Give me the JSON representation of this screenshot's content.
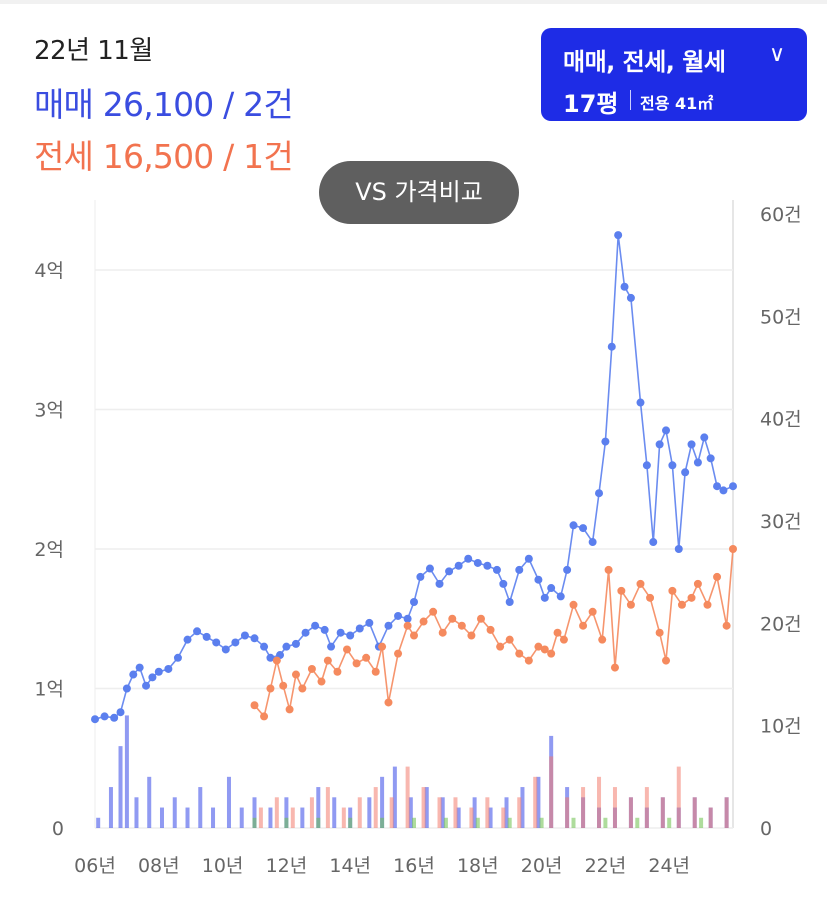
{
  "header": {
    "date": "22년 11월",
    "sale_text": "매매 26,100 / 2건",
    "jeonse_text": "전세 16,500 / 1건"
  },
  "filter": {
    "types": "매매, 전세, 월세",
    "size": "17평",
    "area": "전용 41㎡"
  },
  "vs_button": "VS 가격비교",
  "colors": {
    "sale": "#5b7fee",
    "jeonse": "#f58a5e",
    "sale_bar": "#3447e8",
    "jeonse_bar": "#f27c6d",
    "rent_bar": "#6cc04a",
    "accent": "#1e2ce6"
  },
  "chart_data": {
    "type": "line",
    "x_ticks": [
      "06년",
      "08년",
      "10년",
      "12년",
      "14년",
      "16년",
      "18년",
      "20년",
      "22년",
      "24년"
    ],
    "x_range": [
      2006,
      2026
    ],
    "y_left_ticks": [
      "0",
      "1억",
      "2억",
      "3억",
      "4억"
    ],
    "y_left_range": [
      0,
      4.2
    ],
    "y_right_ticks": [
      "0",
      "10건",
      "20건",
      "30건",
      "40건",
      "50건",
      "60건"
    ],
    "y_right_range": [
      0,
      60
    ],
    "series": [
      {
        "name": "매매",
        "points": [
          [
            2006.0,
            0.78
          ],
          [
            2006.3,
            0.8
          ],
          [
            2006.6,
            0.79
          ],
          [
            2006.8,
            0.83
          ],
          [
            2007.0,
            1.0
          ],
          [
            2007.2,
            1.1
          ],
          [
            2007.4,
            1.15
          ],
          [
            2007.6,
            1.02
          ],
          [
            2007.8,
            1.08
          ],
          [
            2008.0,
            1.12
          ],
          [
            2008.3,
            1.14
          ],
          [
            2008.6,
            1.22
          ],
          [
            2008.9,
            1.35
          ],
          [
            2009.2,
            1.41
          ],
          [
            2009.5,
            1.37
          ],
          [
            2009.8,
            1.33
          ],
          [
            2010.1,
            1.28
          ],
          [
            2010.4,
            1.33
          ],
          [
            2010.7,
            1.38
          ],
          [
            2011.0,
            1.36
          ],
          [
            2011.3,
            1.3
          ],
          [
            2011.5,
            1.22
          ],
          [
            2011.8,
            1.24
          ],
          [
            2012.0,
            1.3
          ],
          [
            2012.3,
            1.32
          ],
          [
            2012.6,
            1.4
          ],
          [
            2012.9,
            1.45
          ],
          [
            2013.2,
            1.42
          ],
          [
            2013.4,
            1.3
          ],
          [
            2013.7,
            1.4
          ],
          [
            2014.0,
            1.38
          ],
          [
            2014.3,
            1.43
          ],
          [
            2014.6,
            1.47
          ],
          [
            2014.9,
            1.3
          ],
          [
            2015.2,
            1.45
          ],
          [
            2015.5,
            1.52
          ],
          [
            2015.8,
            1.5
          ],
          [
            2016.0,
            1.62
          ],
          [
            2016.2,
            1.8
          ],
          [
            2016.5,
            1.86
          ],
          [
            2016.8,
            1.75
          ],
          [
            2017.1,
            1.84
          ],
          [
            2017.4,
            1.88
          ],
          [
            2017.7,
            1.93
          ],
          [
            2018.0,
            1.9
          ],
          [
            2018.3,
            1.88
          ],
          [
            2018.6,
            1.85
          ],
          [
            2018.8,
            1.75
          ],
          [
            2019.0,
            1.62
          ],
          [
            2019.3,
            1.85
          ],
          [
            2019.6,
            1.93
          ],
          [
            2019.9,
            1.78
          ],
          [
            2020.1,
            1.65
          ],
          [
            2020.3,
            1.72
          ],
          [
            2020.6,
            1.66
          ],
          [
            2020.8,
            1.85
          ],
          [
            2021.0,
            2.17
          ],
          [
            2021.3,
            2.15
          ],
          [
            2021.6,
            2.05
          ],
          [
            2021.8,
            2.4
          ],
          [
            2022.0,
            2.77
          ],
          [
            2022.2,
            3.45
          ],
          [
            2022.4,
            4.25
          ],
          [
            2022.6,
            3.88
          ],
          [
            2022.8,
            3.8
          ],
          [
            2023.1,
            3.05
          ],
          [
            2023.3,
            2.6
          ],
          [
            2023.5,
            2.05
          ],
          [
            2023.7,
            2.75
          ],
          [
            2023.9,
            2.85
          ],
          [
            2024.1,
            2.6
          ],
          [
            2024.3,
            2.0
          ],
          [
            2024.5,
            2.55
          ],
          [
            2024.7,
            2.75
          ],
          [
            2024.9,
            2.62
          ],
          [
            2025.1,
            2.8
          ],
          [
            2025.3,
            2.65
          ],
          [
            2025.5,
            2.45
          ],
          [
            2025.7,
            2.42
          ],
          [
            2026.0,
            2.45
          ]
        ]
      },
      {
        "name": "전세",
        "points": [
          [
            2011.0,
            0.88
          ],
          [
            2011.3,
            0.8
          ],
          [
            2011.5,
            1.0
          ],
          [
            2011.7,
            1.2
          ],
          [
            2011.9,
            1.02
          ],
          [
            2012.1,
            0.85
          ],
          [
            2012.3,
            1.1
          ],
          [
            2012.5,
            1.0
          ],
          [
            2012.8,
            1.14
          ],
          [
            2013.1,
            1.05
          ],
          [
            2013.3,
            1.2
          ],
          [
            2013.6,
            1.12
          ],
          [
            2013.9,
            1.28
          ],
          [
            2014.2,
            1.18
          ],
          [
            2014.5,
            1.22
          ],
          [
            2014.8,
            1.12
          ],
          [
            2015.0,
            1.3
          ],
          [
            2015.2,
            0.9
          ],
          [
            2015.5,
            1.25
          ],
          [
            2015.8,
            1.45
          ],
          [
            2016.0,
            1.38
          ],
          [
            2016.3,
            1.48
          ],
          [
            2016.6,
            1.55
          ],
          [
            2016.9,
            1.4
          ],
          [
            2017.2,
            1.5
          ],
          [
            2017.5,
            1.45
          ],
          [
            2017.8,
            1.38
          ],
          [
            2018.1,
            1.5
          ],
          [
            2018.4,
            1.42
          ],
          [
            2018.7,
            1.3
          ],
          [
            2019.0,
            1.35
          ],
          [
            2019.3,
            1.25
          ],
          [
            2019.6,
            1.2
          ],
          [
            2019.9,
            1.3
          ],
          [
            2020.1,
            1.28
          ],
          [
            2020.3,
            1.25
          ],
          [
            2020.5,
            1.4
          ],
          [
            2020.7,
            1.35
          ],
          [
            2021.0,
            1.6
          ],
          [
            2021.3,
            1.45
          ],
          [
            2021.6,
            1.55
          ],
          [
            2021.9,
            1.35
          ],
          [
            2022.1,
            1.85
          ],
          [
            2022.3,
            1.15
          ],
          [
            2022.5,
            1.7
          ],
          [
            2022.8,
            1.6
          ],
          [
            2023.1,
            1.75
          ],
          [
            2023.4,
            1.65
          ],
          [
            2023.7,
            1.4
          ],
          [
            2023.9,
            1.2
          ],
          [
            2024.1,
            1.7
          ],
          [
            2024.4,
            1.6
          ],
          [
            2024.7,
            1.65
          ],
          [
            2024.9,
            1.75
          ],
          [
            2025.2,
            1.6
          ],
          [
            2025.5,
            1.8
          ],
          [
            2025.8,
            1.45
          ],
          [
            2026.0,
            2.0
          ]
        ]
      }
    ],
    "volume_bars": [
      {
        "name": "매매",
        "values": [
          [
            2006.1,
            1
          ],
          [
            2006.5,
            4
          ],
          [
            2006.8,
            8
          ],
          [
            2007.0,
            11
          ],
          [
            2007.3,
            3
          ],
          [
            2007.7,
            5
          ],
          [
            2008.1,
            2
          ],
          [
            2008.5,
            3
          ],
          [
            2008.9,
            2
          ],
          [
            2009.3,
            4
          ],
          [
            2009.7,
            2
          ],
          [
            2010.2,
            5
          ],
          [
            2010.6,
            2
          ],
          [
            2011.0,
            3
          ],
          [
            2011.5,
            2
          ],
          [
            2012.0,
            3
          ],
          [
            2012.5,
            2
          ],
          [
            2013.0,
            4
          ],
          [
            2013.5,
            3
          ],
          [
            2014.0,
            2
          ],
          [
            2014.6,
            3
          ],
          [
            2015.0,
            5
          ],
          [
            2015.4,
            6
          ],
          [
            2015.9,
            3
          ],
          [
            2016.4,
            4
          ],
          [
            2016.9,
            3
          ],
          [
            2017.4,
            2
          ],
          [
            2017.9,
            3
          ],
          [
            2018.4,
            2
          ],
          [
            2018.9,
            3
          ],
          [
            2019.4,
            4
          ],
          [
            2019.9,
            5
          ],
          [
            2020.3,
            9
          ],
          [
            2020.8,
            4
          ],
          [
            2021.3,
            3
          ],
          [
            2021.8,
            2
          ],
          [
            2022.3,
            2
          ],
          [
            2022.8,
            3
          ],
          [
            2023.3,
            2
          ],
          [
            2023.8,
            3
          ],
          [
            2024.3,
            2
          ],
          [
            2024.8,
            3
          ],
          [
            2025.3,
            2
          ],
          [
            2025.8,
            3
          ]
        ]
      },
      {
        "name": "전세",
        "values": [
          [
            2011.2,
            2
          ],
          [
            2011.7,
            3
          ],
          [
            2012.2,
            2
          ],
          [
            2012.8,
            3
          ],
          [
            2013.3,
            4
          ],
          [
            2013.8,
            2
          ],
          [
            2014.3,
            3
          ],
          [
            2014.8,
            4
          ],
          [
            2015.3,
            3
          ],
          [
            2015.8,
            6
          ],
          [
            2016.3,
            4
          ],
          [
            2016.8,
            3
          ],
          [
            2017.3,
            3
          ],
          [
            2017.8,
            2
          ],
          [
            2018.3,
            3
          ],
          [
            2018.8,
            2
          ],
          [
            2019.3,
            3
          ],
          [
            2019.8,
            5
          ],
          [
            2020.3,
            7
          ],
          [
            2020.8,
            3
          ],
          [
            2021.3,
            4
          ],
          [
            2021.8,
            5
          ],
          [
            2022.3,
            4
          ],
          [
            2022.8,
            3
          ],
          [
            2023.3,
            4
          ],
          [
            2023.8,
            3
          ],
          [
            2024.3,
            6
          ],
          [
            2024.8,
            3
          ],
          [
            2025.3,
            2
          ],
          [
            2025.8,
            3
          ]
        ]
      },
      {
        "name": "월세",
        "values": [
          [
            2011.0,
            1
          ],
          [
            2012.0,
            1
          ],
          [
            2013.0,
            1
          ],
          [
            2014.0,
            1
          ],
          [
            2015.0,
            1
          ],
          [
            2016.0,
            1
          ],
          [
            2017.0,
            1
          ],
          [
            2018.0,
            1
          ],
          [
            2019.0,
            1
          ],
          [
            2020.0,
            1
          ],
          [
            2021.0,
            1
          ],
          [
            2022.0,
            1
          ],
          [
            2023.0,
            1
          ],
          [
            2024.0,
            1
          ],
          [
            2025.0,
            1
          ]
        ]
      }
    ],
    "grid": true
  }
}
